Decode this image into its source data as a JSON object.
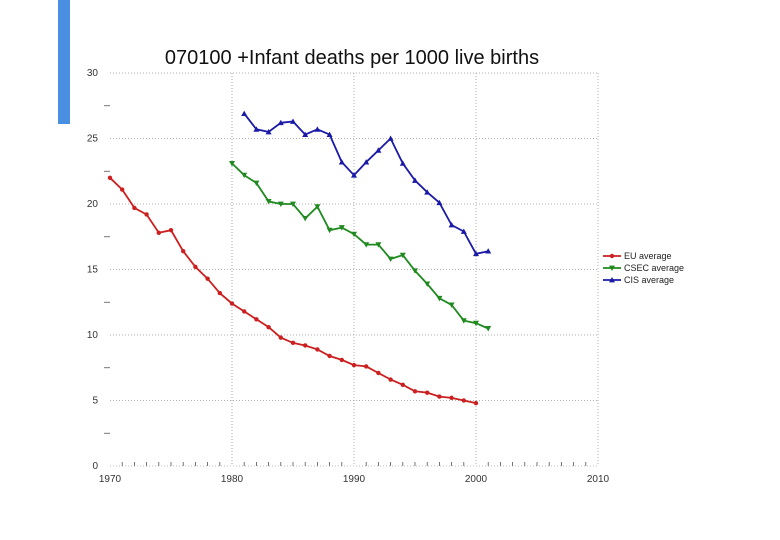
{
  "chart_data": {
    "type": "line",
    "title": "070100 +Infant deaths per 1000 live births",
    "xlabel": "",
    "ylabel": "",
    "xlim": [
      1970,
      2010
    ],
    "ylim": [
      0,
      30
    ],
    "x_ticks": [
      "1970",
      "1980",
      "1990",
      "2000",
      "2010"
    ],
    "y_ticks": [
      "0",
      "5",
      "10",
      "15",
      "20",
      "25",
      "30"
    ],
    "legend_position": "right",
    "series": [
      {
        "name": "EU average",
        "color": "#cc1f1f",
        "marker": "circle",
        "x": [
          1970,
          1971,
          1972,
          1973,
          1974,
          1975,
          1976,
          1977,
          1978,
          1979,
          1980,
          1981,
          1982,
          1983,
          1984,
          1985,
          1986,
          1987,
          1988,
          1989,
          1990,
          1991,
          1992,
          1993,
          1994,
          1995,
          1996,
          1997,
          1998,
          1999,
          2000
        ],
        "y": [
          22.0,
          21.1,
          19.7,
          19.2,
          17.8,
          18.0,
          16.4,
          15.2,
          14.3,
          13.2,
          12.4,
          11.8,
          11.2,
          10.6,
          9.8,
          9.4,
          9.2,
          8.9,
          8.4,
          8.1,
          7.7,
          7.6,
          7.1,
          6.6,
          6.2,
          5.7,
          5.6,
          5.3,
          5.2,
          5.0,
          4.8
        ]
      },
      {
        "name": "CSEC average",
        "color": "#1f8a1f",
        "marker": "triangle-down",
        "x": [
          1980,
          1981,
          1982,
          1983,
          1984,
          1985,
          1986,
          1987,
          1988,
          1989,
          1990,
          1991,
          1992,
          1993,
          1994,
          1995,
          1996,
          1997,
          1998,
          1999,
          2000,
          2001
        ],
        "y": [
          23.1,
          22.2,
          21.6,
          20.2,
          20.0,
          20.0,
          18.9,
          19.8,
          18.0,
          18.2,
          17.7,
          16.9,
          16.9,
          15.8,
          16.1,
          14.9,
          13.9,
          12.8,
          12.3,
          11.1,
          10.9,
          10.5
        ]
      },
      {
        "name": "CIS average",
        "color": "#1a1aa6",
        "marker": "triangle-up",
        "x": [
          1981,
          1982,
          1983,
          1984,
          1985,
          1986,
          1987,
          1988,
          1989,
          1990,
          1991,
          1992,
          1993,
          1994,
          1995,
          1996,
          1997,
          1998,
          1999,
          2000,
          2001
        ],
        "y": [
          26.9,
          25.7,
          25.5,
          26.2,
          26.3,
          25.3,
          25.7,
          25.3,
          23.2,
          22.2,
          23.2,
          24.1,
          25.0,
          23.1,
          21.8,
          20.9,
          20.1,
          18.4,
          17.9,
          16.2,
          16.4
        ]
      }
    ]
  }
}
